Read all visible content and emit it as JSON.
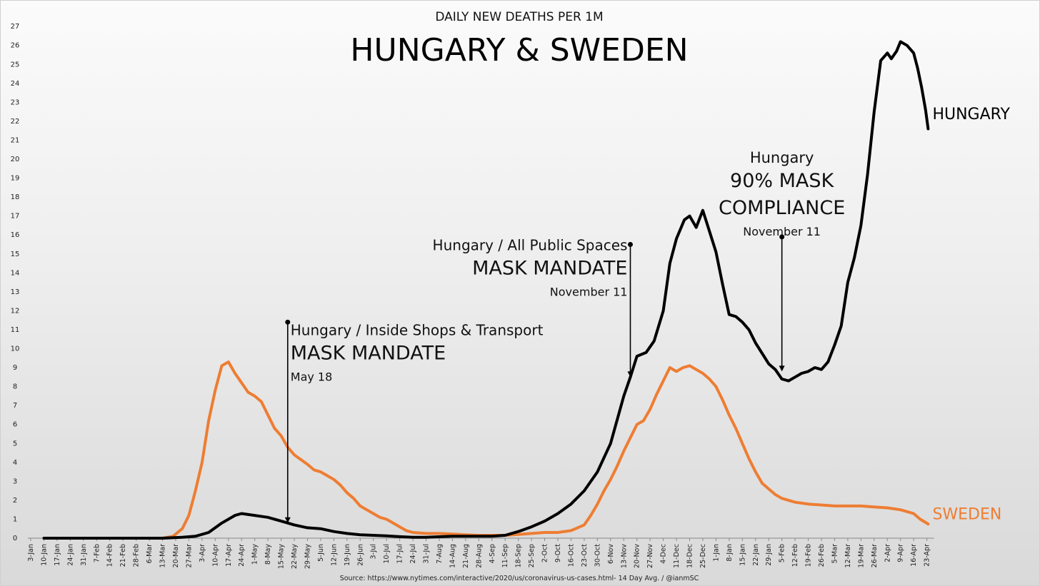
{
  "chart_data": {
    "type": "line",
    "subtitle": "DAILY NEW DEATHS PER 1M",
    "title": "HUNGARY & SWEDEN",
    "source": "Source: https://www.nytimes.com/interactive/2020/us/coronavirus-us-cases.html- 14 Day Avg. / @ianmSC",
    "ylim": [
      0,
      27
    ],
    "y_ticks": [
      0,
      1,
      2,
      3,
      4,
      5,
      6,
      7,
      8,
      9,
      10,
      11,
      12,
      13,
      14,
      15,
      16,
      17,
      18,
      19,
      20,
      21,
      22,
      23,
      24,
      25,
      26,
      27
    ],
    "x_tick_labels": [
      "3-Jan",
      "10-Jan",
      "17-Jan",
      "24-Jan",
      "31-Jan",
      "7-Feb",
      "14-Feb",
      "21-Feb",
      "28-Feb",
      "6-Mar",
      "13-Mar",
      "20-Mar",
      "27-Mar",
      "3-Apr",
      "10-Apr",
      "17-Apr",
      "24-Apr",
      "1-May",
      "8-May",
      "15-May",
      "22-May",
      "29-May",
      "5-Jun",
      "12-Jun",
      "19-Jun",
      "26-Jun",
      "3-Jul",
      "10-Jul",
      "17-Jul",
      "24-Jul",
      "31-Jul",
      "7-Aug",
      "14-Aug",
      "21-Aug",
      "28-Aug",
      "4-Sep",
      "11-Sep",
      "18-Sep",
      "25-Sep",
      "2-Oct",
      "9-Oct",
      "16-Oct",
      "23-Oct",
      "30-Oct",
      "6-Nov",
      "13-Nov",
      "20-Nov",
      "27-Nov",
      "4-Dec",
      "11-Dec",
      "18-Dec",
      "25-Dec",
      "1-Jan",
      "8-Jan",
      "15-Jan",
      "22-Jan",
      "29-Jan",
      "5-Feb",
      "12-Feb",
      "19-Feb",
      "26-Feb",
      "5-Mar",
      "12-Mar",
      "19-Mar",
      "26-Mar",
      "2-Apr",
      "9-Apr",
      "16-Apr",
      "23-Apr"
    ],
    "x_unit": "weeks since 3-Jan (tick index)",
    "series": [
      {
        "name": "HUNGARY",
        "color": "#000000",
        "points": [
          [
            1,
            0
          ],
          [
            10,
            0
          ],
          [
            11.5,
            0.05
          ],
          [
            12.5,
            0.1
          ],
          [
            13.5,
            0.3
          ],
          [
            14.5,
            0.8
          ],
          [
            15.5,
            1.2
          ],
          [
            16,
            1.3
          ],
          [
            17,
            1.2
          ],
          [
            18,
            1.1
          ],
          [
            19,
            0.9
          ],
          [
            20,
            0.7
          ],
          [
            21,
            0.55
          ],
          [
            22,
            0.5
          ],
          [
            23,
            0.35
          ],
          [
            24,
            0.25
          ],
          [
            25,
            0.18
          ],
          [
            26,
            0.15
          ],
          [
            27,
            0.12
          ],
          [
            28,
            0.08
          ],
          [
            29,
            0.05
          ],
          [
            30,
            0.05
          ],
          [
            32,
            0.1
          ],
          [
            34,
            0.1
          ],
          [
            35,
            0.1
          ],
          [
            36,
            0.15
          ],
          [
            37,
            0.35
          ],
          [
            38,
            0.6
          ],
          [
            39,
            0.9
          ],
          [
            40,
            1.3
          ],
          [
            41,
            1.8
          ],
          [
            42,
            2.5
          ],
          [
            43,
            3.5
          ],
          [
            44,
            5
          ],
          [
            45,
            7.5
          ],
          [
            45.5,
            8.5
          ],
          [
            46,
            9.6
          ],
          [
            46.7,
            9.8
          ],
          [
            47.3,
            10.4
          ],
          [
            48,
            12
          ],
          [
            48.5,
            14.5
          ],
          [
            49,
            15.8
          ],
          [
            49.6,
            16.8
          ],
          [
            50,
            17
          ],
          [
            50.5,
            16.4
          ],
          [
            51,
            17.3
          ],
          [
            51.5,
            16.2
          ],
          [
            52,
            15.1
          ],
          [
            52.5,
            13.4
          ],
          [
            53,
            11.8
          ],
          [
            53.5,
            11.7
          ],
          [
            54,
            11.4
          ],
          [
            54.5,
            11
          ],
          [
            55,
            10.3
          ],
          [
            56,
            9.2
          ],
          [
            56.5,
            8.9
          ],
          [
            57,
            8.4
          ],
          [
            57.5,
            8.3
          ],
          [
            58,
            8.5
          ],
          [
            58.5,
            8.7
          ],
          [
            59,
            8.8
          ],
          [
            59.5,
            9.0
          ],
          [
            60,
            8.9
          ],
          [
            60.5,
            9.3
          ],
          [
            61,
            10.2
          ],
          [
            61.5,
            11.2
          ],
          [
            62,
            13.5
          ],
          [
            62.5,
            14.8
          ],
          [
            63,
            16.5
          ],
          [
            63.5,
            19.2
          ],
          [
            64,
            22.5
          ],
          [
            64.5,
            25.2
          ],
          [
            65,
            25.6
          ],
          [
            65.3,
            25.3
          ],
          [
            65.7,
            25.7
          ],
          [
            66,
            26.2
          ],
          [
            66.5,
            26
          ],
          [
            67,
            25.6
          ],
          [
            67.3,
            24.8
          ],
          [
            67.6,
            23.8
          ],
          [
            67.9,
            22.6
          ],
          [
            68.1,
            21.6
          ]
        ]
      },
      {
        "name": "SWEDEN",
        "color": "#ee7d32",
        "points": [
          [
            1,
            0
          ],
          [
            10,
            0
          ],
          [
            10.8,
            0.1
          ],
          [
            11.5,
            0.5
          ],
          [
            12,
            1.2
          ],
          [
            12.5,
            2.5
          ],
          [
            13,
            4
          ],
          [
            13.5,
            6.2
          ],
          [
            14,
            7.8
          ],
          [
            14.5,
            9.1
          ],
          [
            15,
            9.3
          ],
          [
            15.5,
            8.7
          ],
          [
            16,
            8.2
          ],
          [
            16.5,
            7.7
          ],
          [
            17,
            7.5
          ],
          [
            17.5,
            7.2
          ],
          [
            18,
            6.5
          ],
          [
            18.5,
            5.8
          ],
          [
            19,
            5.4
          ],
          [
            19.5,
            4.8
          ],
          [
            20,
            4.4
          ],
          [
            21,
            3.9
          ],
          [
            21.5,
            3.6
          ],
          [
            22,
            3.5
          ],
          [
            22.5,
            3.3
          ],
          [
            23,
            3.1
          ],
          [
            23.5,
            2.8
          ],
          [
            24,
            2.4
          ],
          [
            24.5,
            2.1
          ],
          [
            25,
            1.7
          ],
          [
            25.5,
            1.5
          ],
          [
            26,
            1.3
          ],
          [
            26.5,
            1.1
          ],
          [
            27,
            1.0
          ],
          [
            27.5,
            0.8
          ],
          [
            28,
            0.6
          ],
          [
            28.5,
            0.4
          ],
          [
            29,
            0.3
          ],
          [
            30,
            0.25
          ],
          [
            31,
            0.25
          ],
          [
            32,
            0.22
          ],
          [
            33,
            0.18
          ],
          [
            34,
            0.15
          ],
          [
            35,
            0.15
          ],
          [
            36,
            0.15
          ],
          [
            37,
            0.2
          ],
          [
            38,
            0.25
          ],
          [
            39,
            0.3
          ],
          [
            40,
            0.3
          ],
          [
            41,
            0.4
          ],
          [
            42,
            0.7
          ],
          [
            42.5,
            1.2
          ],
          [
            43,
            1.8
          ],
          [
            43.5,
            2.5
          ],
          [
            44,
            3.1
          ],
          [
            44.5,
            3.8
          ],
          [
            45,
            4.6
          ],
          [
            45.5,
            5.3
          ],
          [
            46,
            6
          ],
          [
            46.5,
            6.2
          ],
          [
            47,
            6.8
          ],
          [
            47.5,
            7.6
          ],
          [
            48,
            8.3
          ],
          [
            48.5,
            9.0
          ],
          [
            49,
            8.8
          ],
          [
            49.5,
            9.0
          ],
          [
            50,
            9.1
          ],
          [
            50.5,
            8.9
          ],
          [
            51,
            8.7
          ],
          [
            51.5,
            8.4
          ],
          [
            52,
            8.0
          ],
          [
            52.5,
            7.3
          ],
          [
            53,
            6.5
          ],
          [
            53.5,
            5.8
          ],
          [
            54,
            5.0
          ],
          [
            54.5,
            4.2
          ],
          [
            55,
            3.5
          ],
          [
            55.5,
            2.9
          ],
          [
            56,
            2.6
          ],
          [
            56.5,
            2.3
          ],
          [
            57,
            2.1
          ],
          [
            57.5,
            2.0
          ],
          [
            58,
            1.9
          ],
          [
            58.5,
            1.85
          ],
          [
            59,
            1.8
          ],
          [
            60,
            1.75
          ],
          [
            61,
            1.7
          ],
          [
            62,
            1.7
          ],
          [
            63,
            1.7
          ],
          [
            64,
            1.65
          ],
          [
            65,
            1.6
          ],
          [
            66,
            1.5
          ],
          [
            67,
            1.3
          ],
          [
            67.5,
            1.0
          ],
          [
            68.1,
            0.75
          ]
        ]
      }
    ],
    "annotations": [
      {
        "lines": [
          "Hungary / Inside Shops & Transport",
          "MASK MANDATE",
          "May 18"
        ],
        "x": 19.5,
        "y_top": 11.4,
        "y_arrow": 0.8,
        "align": "left"
      },
      {
        "lines": [
          "Hungary / All Public Spaces",
          "MASK MANDATE",
          "November 11"
        ],
        "x": 45.5,
        "y_top": 15.5,
        "y_arrow": 8.5,
        "align": "right"
      },
      {
        "lines": [
          "Hungary",
          "90% MASK",
          "COMPLIANCE",
          "November 11"
        ],
        "x": 57,
        "y_top": 15.9,
        "y_arrow": 8.8,
        "align": "center"
      }
    ]
  }
}
